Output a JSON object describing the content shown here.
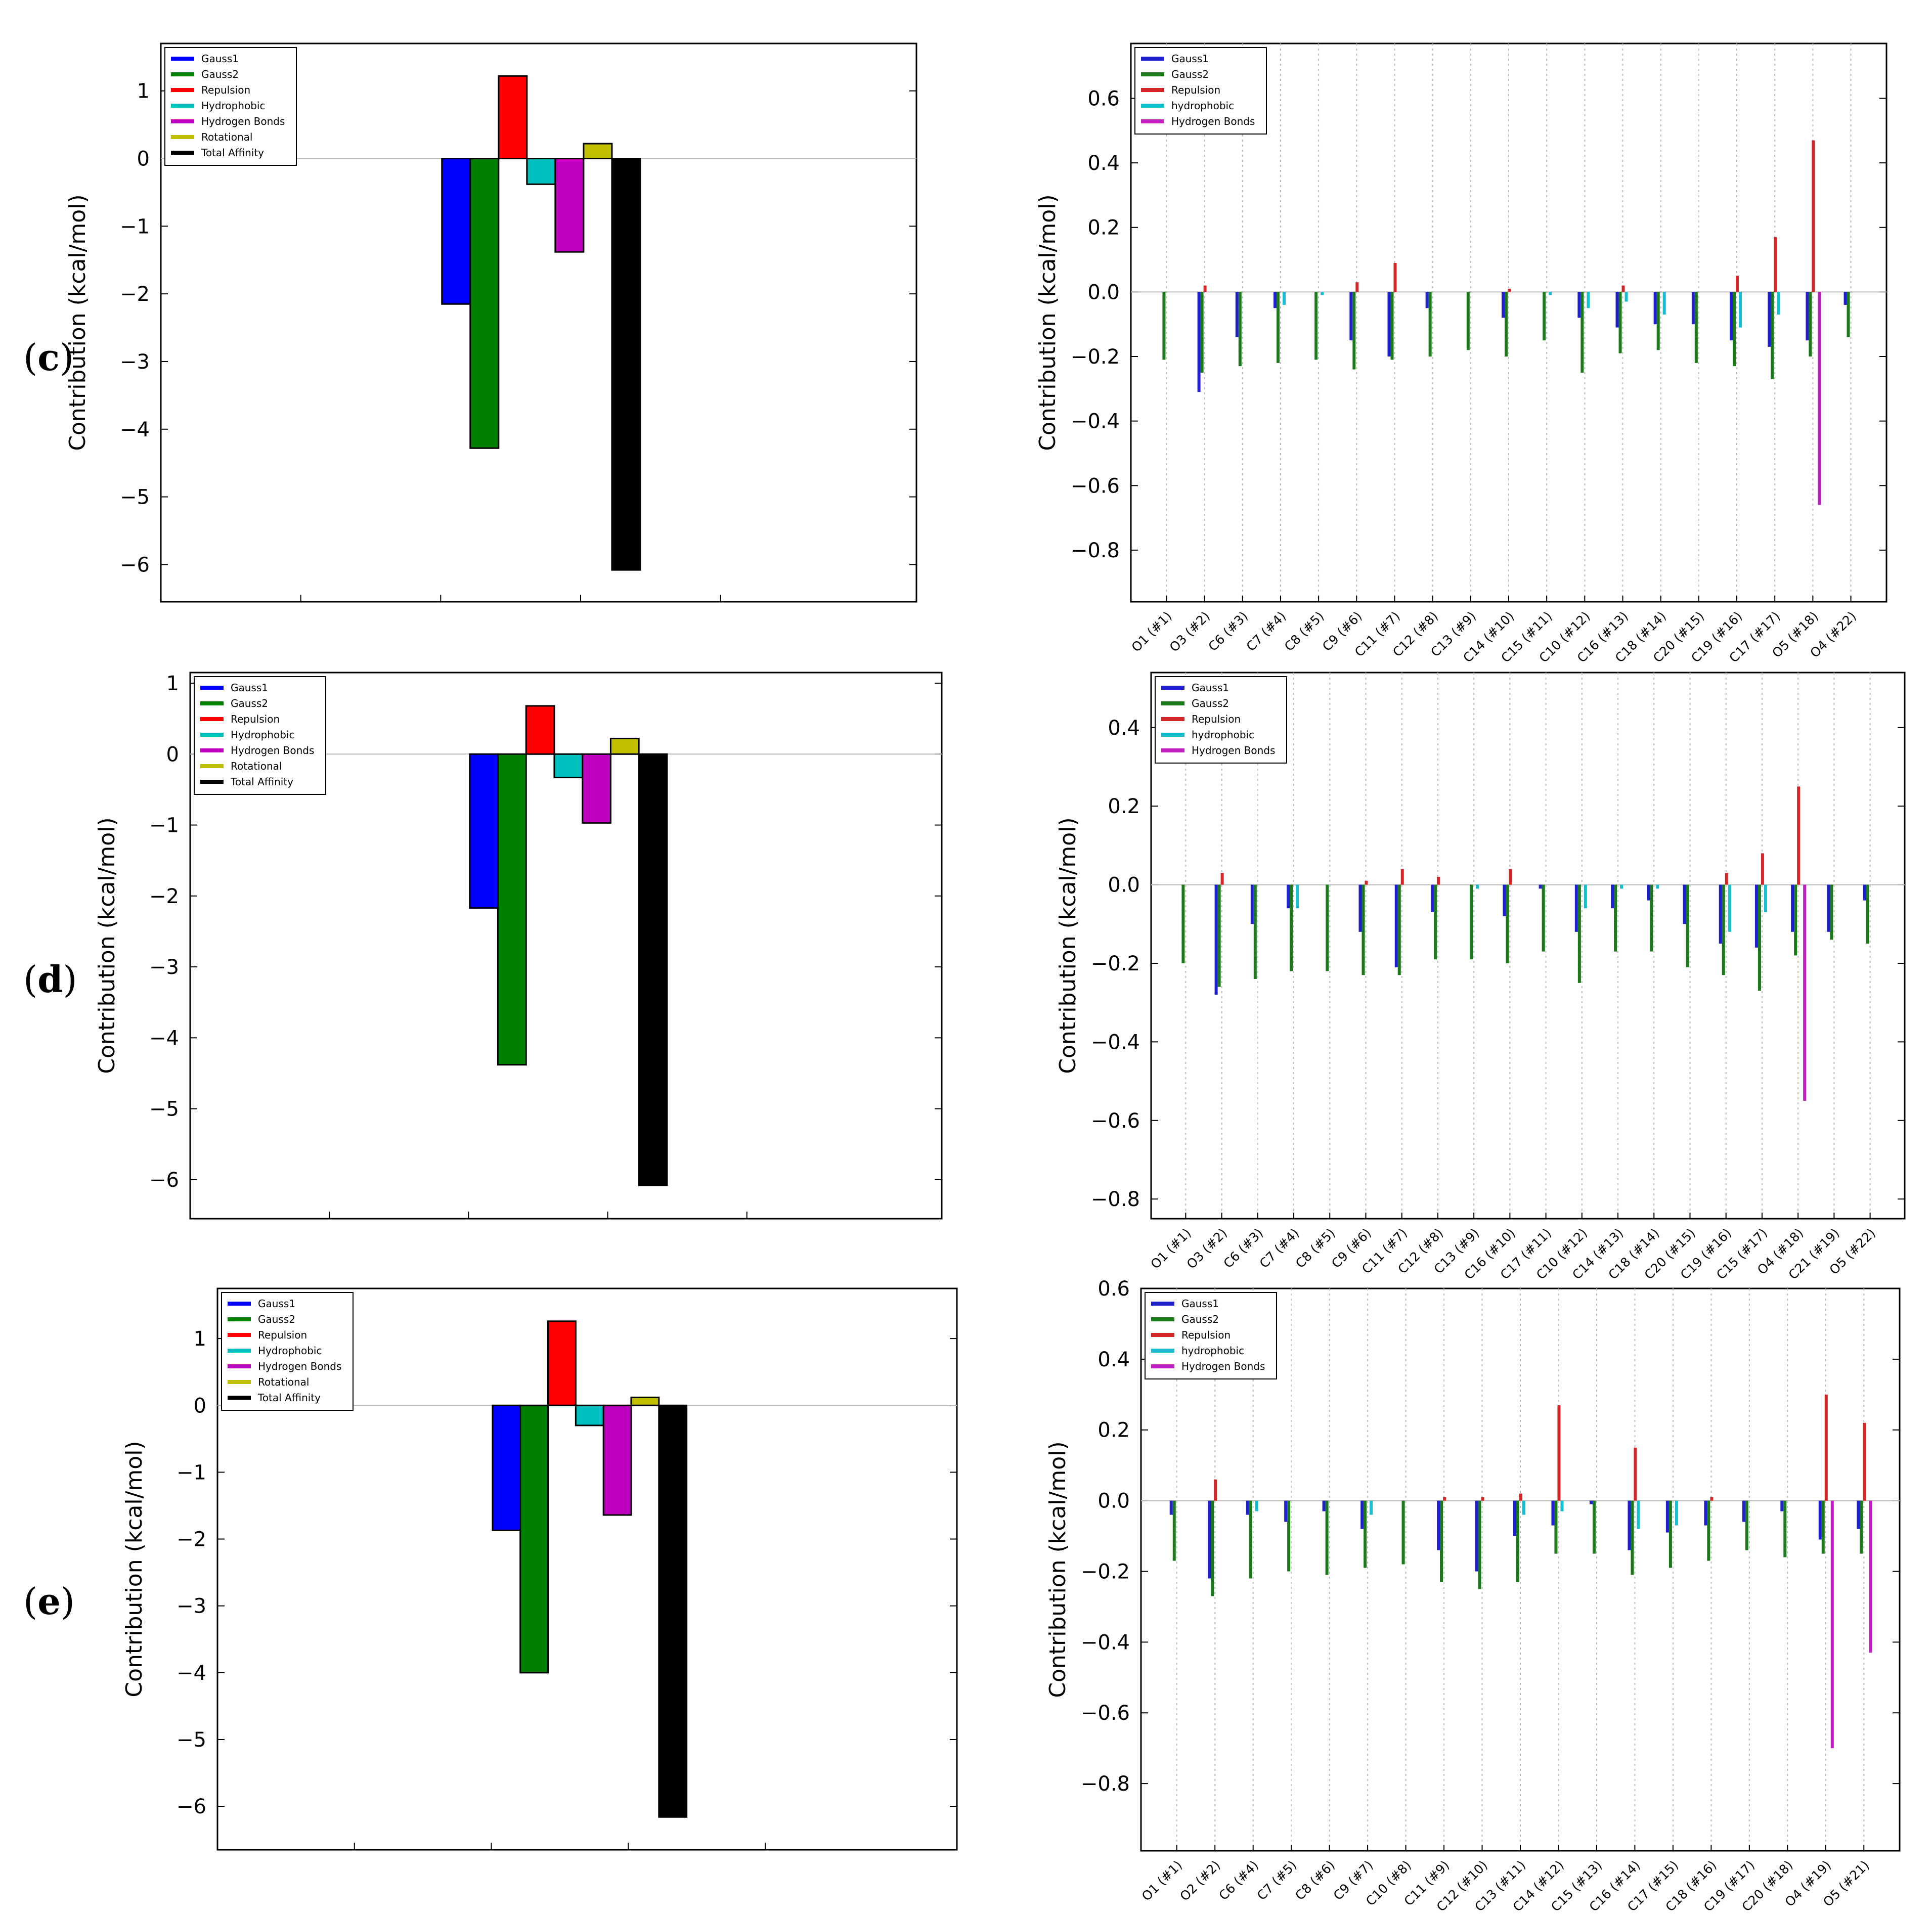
{
  "panel_labels": [
    {
      "open": "(",
      "letter": "c",
      "close": ")"
    },
    {
      "open": "(",
      "letter": "d",
      "close": ")"
    },
    {
      "open": "(",
      "letter": "e",
      "close": ")"
    }
  ],
  "colors": {
    "Gauss1": "#0000ff",
    "Gauss2": "#008000",
    "Repulsion": "#ff0000",
    "Hydrophobic": "#00bfbf",
    "Hydrogen Bonds": "#bf00bf",
    "Rotational": "#bfbf00",
    "Total Affinity": "#000000",
    "atomRepulsion": "#d62728",
    "atomHydrophobic": "#17becf",
    "atomHB": "#c020c0",
    "atomGauss1": "#1f1fcf",
    "atomGauss2": "#1a7a1a"
  },
  "chart_data": [
    {
      "id": "c-left",
      "type": "bar",
      "ylabel": "Contribution (kcal/mol)",
      "ylim": [
        -6.55,
        1.7
      ],
      "yticks": [
        -6,
        -5,
        -4,
        -3,
        -2,
        -1,
        0,
        1
      ],
      "legend": [
        "Gauss1",
        "Gauss2",
        "Repulsion",
        "Hydrophobic",
        "Hydrogen Bonds",
        "Rotational",
        "Total Affinity"
      ],
      "categories": [
        "Gauss1",
        "Gauss2",
        "Repulsion",
        "Hydrophobic",
        "Hydrogen Bonds",
        "Rotational",
        "Total Affinity"
      ],
      "values": [
        -2.15,
        -4.28,
        1.22,
        -0.38,
        -1.38,
        0.22,
        -6.08
      ]
    },
    {
      "id": "c-right",
      "type": "bar",
      "ylabel": "Contribution (kcal/mol)",
      "ylim": [
        -0.96,
        0.77
      ],
      "yticks": [
        -0.8,
        -0.6,
        -0.4,
        -0.2,
        0.0,
        0.2,
        0.4,
        0.6
      ],
      "legend": [
        "Gauss1",
        "Gauss2",
        "Repulsion",
        "hydrophobic",
        "Hydrogen Bonds"
      ],
      "categories": [
        "O1 (#1)",
        "O3 (#2)",
        "C6 (#3)",
        "C7 (#4)",
        "C8 (#5)",
        "C9 (#6)",
        "C11 (#7)",
        "C12 (#8)",
        "C13 (#9)",
        "C14 (#10)",
        "C15 (#11)",
        "C10 (#12)",
        "C16 (#13)",
        "C18 (#14)",
        "C20 (#15)",
        "C19 (#16)",
        "C17 (#17)",
        "O5 (#18)",
        "O4 (#22)"
      ],
      "series": [
        {
          "name": "Gauss1",
          "values": [
            0,
            -0.31,
            -0.14,
            -0.05,
            0,
            -0.15,
            -0.2,
            -0.05,
            0,
            -0.08,
            0,
            -0.08,
            -0.11,
            -0.1,
            -0.1,
            -0.15,
            -0.17,
            -0.15,
            -0.04
          ]
        },
        {
          "name": "Gauss2",
          "values": [
            -0.21,
            -0.25,
            -0.23,
            -0.22,
            -0.21,
            -0.24,
            -0.21,
            -0.2,
            -0.18,
            -0.2,
            -0.15,
            -0.25,
            -0.19,
            -0.18,
            -0.22,
            -0.23,
            -0.27,
            -0.2,
            -0.14
          ]
        },
        {
          "name": "Repulsion",
          "values": [
            0,
            0.02,
            0,
            0,
            0,
            0.03,
            0.09,
            0,
            0,
            0.01,
            0,
            0,
            0.02,
            0,
            0,
            0.05,
            0.17,
            0.47,
            0
          ]
        },
        {
          "name": "hydrophobic",
          "values": [
            0,
            0,
            0,
            -0.04,
            -0.01,
            0,
            0,
            0,
            0,
            0,
            -0.01,
            -0.05,
            -0.03,
            -0.07,
            0,
            -0.11,
            -0.07,
            0,
            0
          ]
        },
        {
          "name": "Hydrogen Bonds",
          "values": [
            0,
            0,
            0,
            0,
            0,
            0,
            0,
            0,
            0,
            0,
            0,
            0,
            0,
            0,
            0,
            0,
            0,
            -0.66,
            0
          ]
        }
      ]
    },
    {
      "id": "d-left",
      "type": "bar",
      "ylabel": "Contribution (kcal/mol)",
      "ylim": [
        -6.55,
        1.15
      ],
      "yticks": [
        -6,
        -5,
        -4,
        -3,
        -2,
        -1,
        0,
        1
      ],
      "legend": [
        "Gauss1",
        "Gauss2",
        "Repulsion",
        "Hydrophobic",
        "Hydrogen Bonds",
        "Rotational",
        "Total Affinity"
      ],
      "categories": [
        "Gauss1",
        "Gauss2",
        "Repulsion",
        "Hydrophobic",
        "Hydrogen Bonds",
        "Rotational",
        "Total Affinity"
      ],
      "values": [
        -2.17,
        -4.38,
        0.68,
        -0.33,
        -0.97,
        0.22,
        -6.08
      ]
    },
    {
      "id": "d-right",
      "type": "bar",
      "ylabel": "Contribution (kcal/mol)",
      "ylim": [
        -0.85,
        0.54
      ],
      "yticks": [
        -0.8,
        -0.6,
        -0.4,
        -0.2,
        0.0,
        0.2,
        0.4
      ],
      "legend": [
        "Gauss1",
        "Gauss2",
        "Repulsion",
        "hydrophobic",
        "Hydrogen Bonds"
      ],
      "categories": [
        "O1 (#1)",
        "O3 (#2)",
        "C6 (#3)",
        "C7 (#4)",
        "C8 (#5)",
        "C9 (#6)",
        "C11 (#7)",
        "C12 (#8)",
        "C13 (#9)",
        "C16 (#10)",
        "C17 (#11)",
        "C10 (#12)",
        "C14 (#13)",
        "C18 (#14)",
        "C20 (#15)",
        "C19 (#16)",
        "C15 (#17)",
        "O4 (#18)",
        "C21 (#19)",
        "O5 (#22)"
      ],
      "series": [
        {
          "name": "Gauss1",
          "values": [
            0,
            -0.28,
            -0.1,
            -0.06,
            0,
            -0.12,
            -0.21,
            -0.07,
            0,
            -0.08,
            -0.01,
            -0.12,
            -0.06,
            -0.04,
            -0.1,
            -0.15,
            -0.16,
            -0.12,
            -0.12,
            -0.04
          ]
        },
        {
          "name": "Gauss2",
          "values": [
            -0.2,
            -0.26,
            -0.24,
            -0.22,
            -0.22,
            -0.23,
            -0.23,
            -0.19,
            -0.19,
            -0.2,
            -0.17,
            -0.25,
            -0.17,
            -0.17,
            -0.21,
            -0.23,
            -0.27,
            -0.18,
            -0.14,
            -0.15
          ]
        },
        {
          "name": "Repulsion",
          "values": [
            0,
            0.03,
            0,
            0,
            0,
            0.01,
            0.04,
            0.02,
            0,
            0.04,
            0,
            0,
            0,
            0,
            0,
            0.03,
            0.08,
            0.25,
            0,
            0
          ]
        },
        {
          "name": "hydrophobic",
          "values": [
            0,
            0,
            0,
            -0.06,
            0,
            0,
            0,
            0,
            -0.01,
            0,
            0,
            -0.06,
            -0.01,
            -0.01,
            0,
            -0.12,
            -0.07,
            0,
            0,
            0
          ]
        },
        {
          "name": "Hydrogen Bonds",
          "values": [
            0,
            0,
            0,
            0,
            0,
            0,
            0,
            0,
            0,
            0,
            0,
            0,
            0,
            0,
            0,
            0,
            0,
            -0.55,
            0,
            0
          ]
        }
      ]
    },
    {
      "id": "e-left",
      "type": "bar",
      "ylabel": "Contribution (kcal/mol)",
      "ylim": [
        -6.65,
        1.75
      ],
      "yticks": [
        -6,
        -5,
        -4,
        -3,
        -2,
        -1,
        0,
        1
      ],
      "legend": [
        "Gauss1",
        "Gauss2",
        "Repulsion",
        "Hydrophobic",
        "Hydrogen Bonds",
        "Rotational",
        "Total Affinity"
      ],
      "categories": [
        "Gauss1",
        "Gauss2",
        "Repulsion",
        "Hydrophobic",
        "Hydrogen Bonds",
        "Rotational",
        "Total Affinity"
      ],
      "values": [
        -1.87,
        -4.0,
        1.26,
        -0.3,
        -1.64,
        0.12,
        -6.16
      ]
    },
    {
      "id": "e-right",
      "type": "bar",
      "ylabel": "Contribution (kcal/mol)",
      "ylim": [
        -0.99,
        0.6
      ],
      "yticks": [
        -0.8,
        -0.6,
        -0.4,
        -0.2,
        0.0,
        0.2,
        0.4,
        0.6
      ],
      "legend": [
        "Gauss1",
        "Gauss2",
        "Repulsion",
        "hydrophobic",
        "Hydrogen Bonds"
      ],
      "categories": [
        "O1 (#1)",
        "O2 (#2)",
        "C6 (#4)",
        "C7 (#5)",
        "C8 (#6)",
        "C9 (#7)",
        "C10 (#8)",
        "C11 (#9)",
        "C12 (#10)",
        "C13 (#11)",
        "C14 (#12)",
        "C15 (#13)",
        "C16 (#14)",
        "C17 (#15)",
        "C18 (#16)",
        "C19 (#17)",
        "C20 (#18)",
        "O4 (#19)",
        "O5 (#21)"
      ],
      "series": [
        {
          "name": "Gauss1",
          "values": [
            -0.04,
            -0.22,
            -0.04,
            -0.06,
            -0.03,
            -0.08,
            0,
            -0.14,
            -0.2,
            -0.1,
            -0.07,
            -0.01,
            -0.14,
            -0.09,
            -0.07,
            -0.06,
            -0.03,
            -0.11,
            -0.08
          ]
        },
        {
          "name": "Gauss2",
          "values": [
            -0.17,
            -0.27,
            -0.22,
            -0.2,
            -0.21,
            -0.19,
            -0.18,
            -0.23,
            -0.25,
            -0.23,
            -0.15,
            -0.15,
            -0.21,
            -0.19,
            -0.17,
            -0.14,
            -0.16,
            -0.15,
            -0.15
          ]
        },
        {
          "name": "Repulsion",
          "values": [
            0,
            0.06,
            0,
            0,
            0,
            0,
            0,
            0.01,
            0.01,
            0.02,
            0.27,
            0,
            0.15,
            0,
            0.01,
            0,
            0,
            0.3,
            0.22
          ]
        },
        {
          "name": "hydrophobic",
          "values": [
            0,
            0,
            -0.03,
            0,
            0,
            -0.04,
            0,
            0,
            0,
            -0.04,
            -0.03,
            0,
            -0.08,
            -0.07,
            0,
            0,
            0,
            0,
            0
          ]
        },
        {
          "name": "Hydrogen Bonds",
          "values": [
            0,
            0,
            0,
            0,
            0,
            0,
            0,
            0,
            0,
            0,
            0,
            0,
            0,
            0,
            0,
            0,
            0,
            -0.7,
            -0.43
          ]
        }
      ]
    }
  ]
}
